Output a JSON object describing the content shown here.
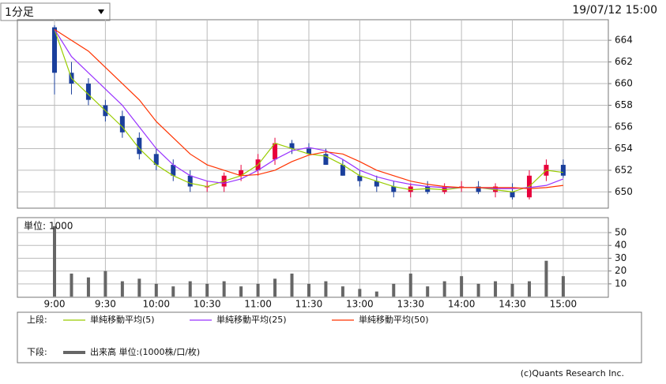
{
  "header": {
    "dropdown": "1分足",
    "datetime": "19/07/12 15:00"
  },
  "footer": "(c)Quants Research Inc.",
  "chart_data": [
    {
      "type": "candlestick",
      "x": [
        0,
        10,
        20,
        30,
        40,
        50,
        60,
        70,
        80,
        90,
        100,
        110,
        120,
        130,
        140,
        150,
        160,
        170,
        180,
        190,
        200,
        210,
        220,
        230,
        240,
        250,
        260,
        270,
        280,
        290,
        300
      ],
      "xlim": [
        -21.9,
        326.6
      ],
      "xticks": [
        {
          "value": 0,
          "label": "9:00"
        },
        {
          "value": 30,
          "label": "9:30"
        },
        {
          "value": 60,
          "label": "10:00"
        },
        {
          "value": 90,
          "label": "10:30"
        },
        {
          "value": 120,
          "label": "11:00"
        },
        {
          "value": 150,
          "label": "11:30"
        },
        {
          "value": 180,
          "label": "13:00"
        },
        {
          "value": 210,
          "label": "13:30"
        },
        {
          "value": 240,
          "label": "14:00"
        },
        {
          "value": 270,
          "label": "14:30"
        },
        {
          "value": 300,
          "label": "15:00"
        }
      ],
      "ylim": [
        648.5,
        665.9
      ],
      "yticks": [
        650,
        652,
        654,
        656,
        658,
        660,
        662,
        664
      ],
      "open": [
        665.2,
        661,
        660,
        658,
        657,
        655,
        653.5,
        652.5,
        651.5,
        650.5,
        650.5,
        651.5,
        652,
        653,
        654.5,
        654,
        653.5,
        652.5,
        651.5,
        651,
        650.5,
        650,
        650.5,
        650,
        650.5,
        650.5,
        650,
        650,
        649.5,
        651.5,
        652.5
      ],
      "high": [
        665.4,
        662,
        660.5,
        658.5,
        657.5,
        655.5,
        654,
        653,
        652,
        651,
        651.8,
        652.5,
        653.5,
        655,
        654.8,
        654.5,
        654,
        653,
        652,
        651.5,
        651,
        650.8,
        651,
        650.8,
        651,
        651,
        650.8,
        650.8,
        652,
        653,
        653
      ],
      "low": [
        659,
        659,
        658,
        656.5,
        655,
        653,
        652,
        651,
        650,
        650,
        650,
        651,
        651.5,
        652.5,
        653.5,
        653.5,
        652.5,
        651.5,
        650.5,
        650,
        649.5,
        649.5,
        649.8,
        649.8,
        650,
        649.8,
        649.5,
        649.3,
        649.3,
        651,
        651.3
      ],
      "close": [
        661,
        660,
        658.5,
        657,
        655.5,
        653.5,
        652.5,
        651.5,
        650.5,
        650.5,
        651.5,
        652,
        653,
        654.5,
        654,
        653.5,
        652.5,
        651.5,
        651,
        650.5,
        650,
        650.5,
        650,
        650.5,
        650.5,
        650,
        650.5,
        649.5,
        651.5,
        652.5,
        651.5
      ],
      "up_color": "#e8003c",
      "down_color": "#1a3f9c",
      "legend_label": "上段:",
      "series": [
        {
          "name": "単純移動平均(5)",
          "color": "#99cc00",
          "values": [
            665,
            660.5,
            659,
            657.5,
            656,
            654,
            652.5,
            651.5,
            650.8,
            650.5,
            651,
            651.5,
            652.5,
            654.5,
            654,
            653.5,
            653.3,
            652.5,
            651.5,
            651,
            650.5,
            650.2,
            650.3,
            650.2,
            650.4,
            650.4,
            650.2,
            650,
            650.5,
            652,
            651.8
          ]
        },
        {
          "name": "単純移動平均(25)",
          "color": "#9933ff",
          "values": [
            665,
            662.5,
            661,
            659.5,
            658,
            656,
            654,
            652.5,
            651.5,
            651,
            650.8,
            651.2,
            652,
            653,
            653.8,
            654.1,
            653.8,
            653,
            652,
            651.4,
            651,
            650.7,
            650.5,
            650.4,
            650.4,
            650.4,
            650.3,
            650.3,
            650.4,
            650.6,
            651.2
          ]
        },
        {
          "name": "単純移動平均(50)",
          "color": "#ff3300",
          "values": [
            665,
            664,
            663,
            661.5,
            660,
            658.5,
            656.5,
            655,
            653.5,
            652.5,
            652,
            651.5,
            651.6,
            652,
            652.8,
            653.4,
            653.7,
            653.5,
            652.8,
            652,
            651.5,
            651,
            650.7,
            650.5,
            650.4,
            650.4,
            650.4,
            650.4,
            650.3,
            650.4,
            650.6
          ]
        }
      ]
    },
    {
      "type": "bar",
      "ylabel": "単位: 1000",
      "x": [
        0,
        10,
        20,
        30,
        40,
        50,
        60,
        70,
        80,
        90,
        100,
        110,
        120,
        130,
        140,
        150,
        160,
        170,
        180,
        190,
        200,
        210,
        220,
        230,
        240,
        250,
        260,
        270,
        280,
        290,
        300
      ],
      "xlim": [
        -21.9,
        326.6
      ],
      "ylim": [
        -0.5,
        61.7
      ],
      "yticks": [
        10,
        20,
        30,
        40,
        50
      ],
      "legend_label": "下段:",
      "series": [
        {
          "name": "出来高 単位:(1000株/口/枚)",
          "color": "#666666",
          "values": [
            55,
            18,
            15,
            20,
            12,
            14,
            10,
            8,
            12,
            10,
            12,
            8,
            10,
            14,
            18,
            10,
            12,
            8,
            6,
            4,
            10,
            18,
            8,
            12,
            16,
            10,
            12,
            10,
            12,
            28,
            16
          ]
        }
      ]
    }
  ]
}
